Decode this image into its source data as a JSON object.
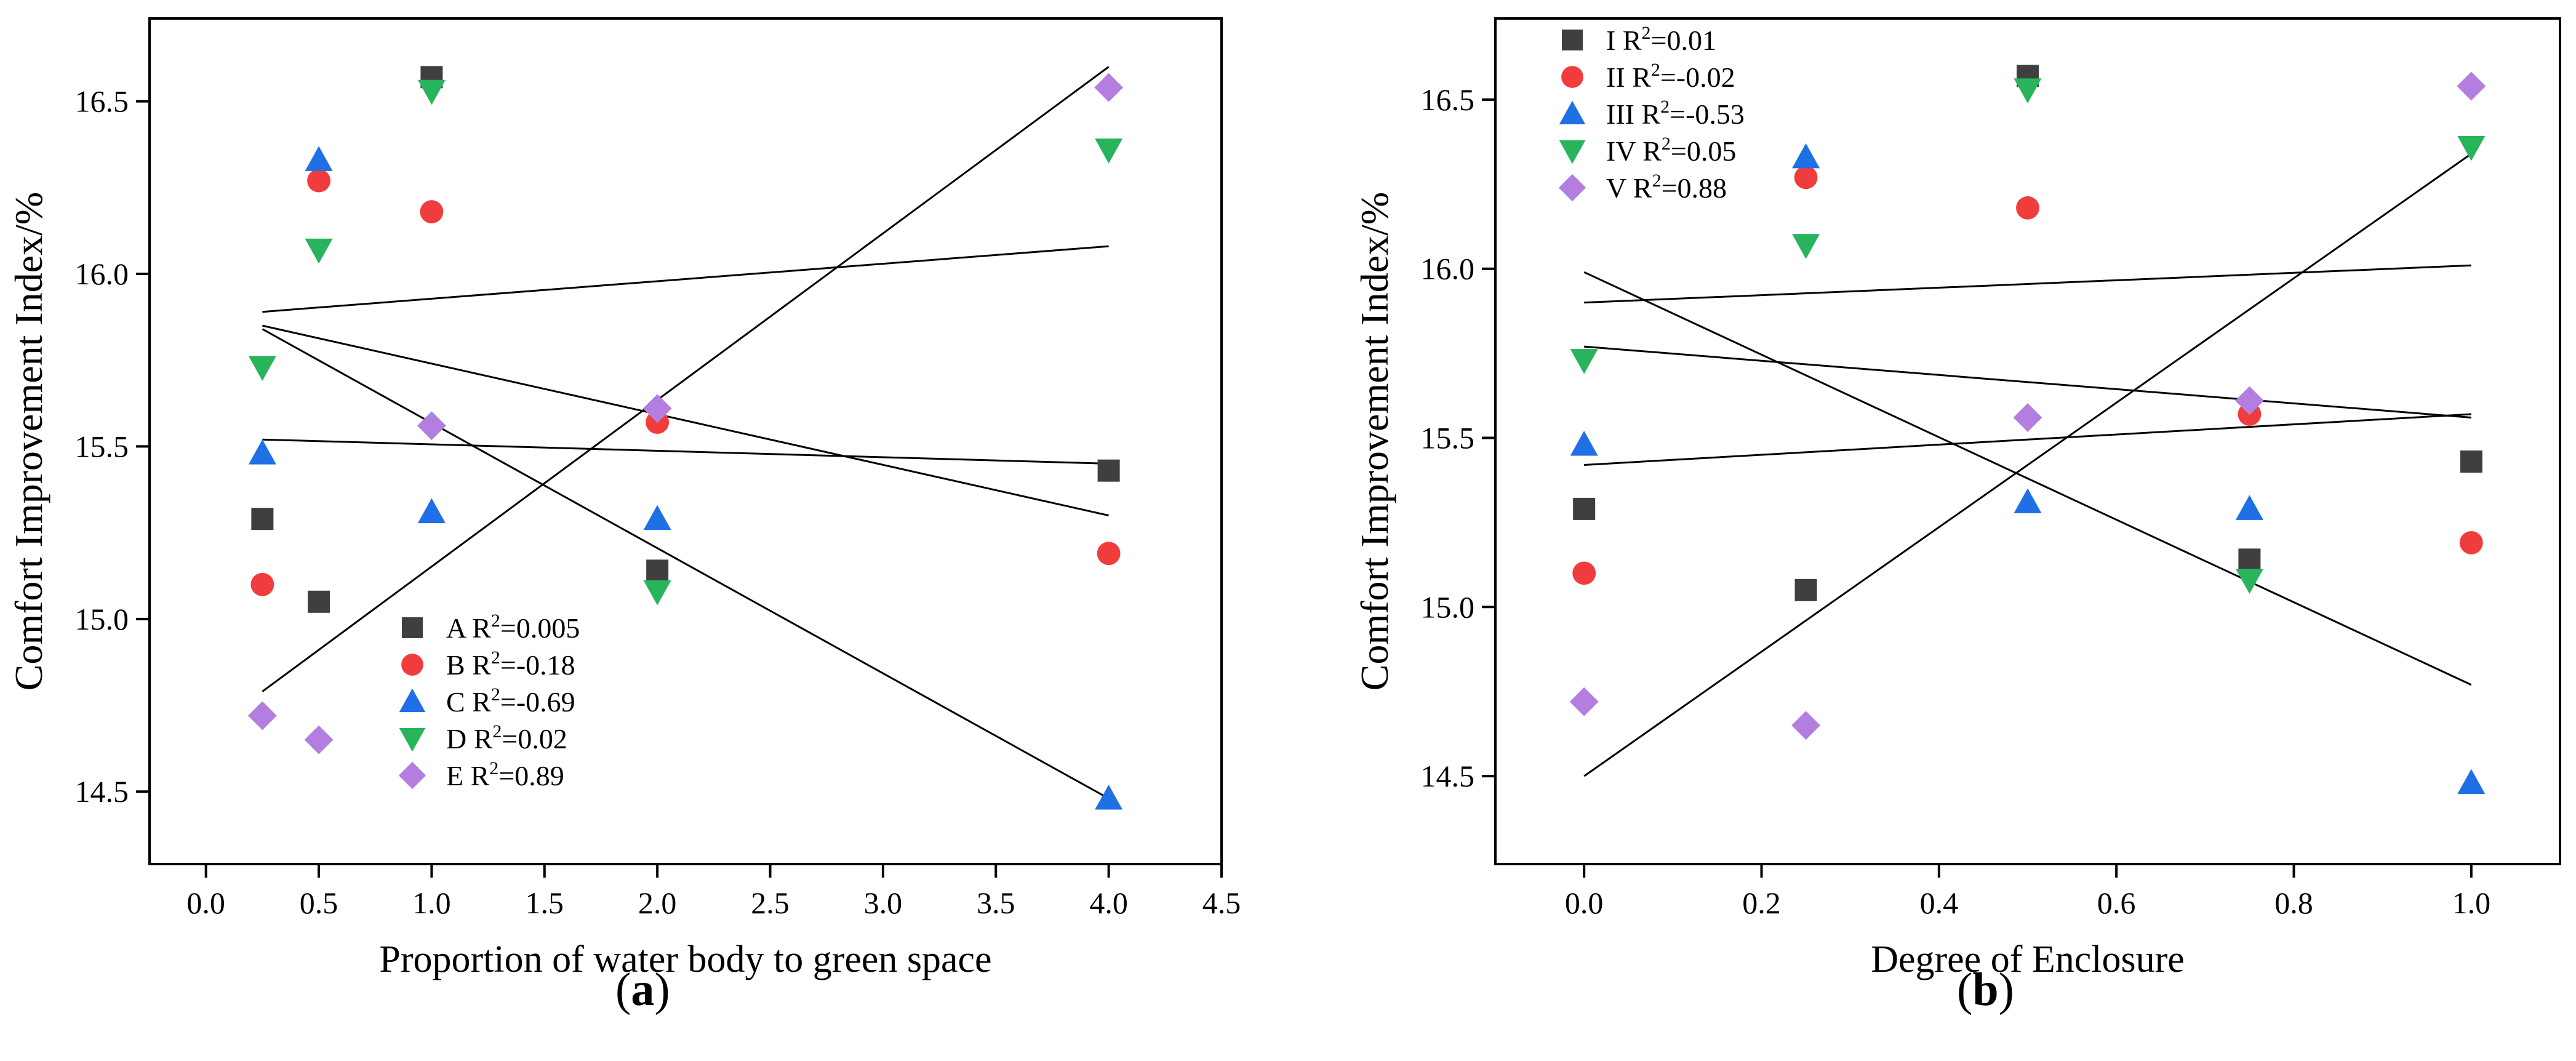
{
  "chart_data": [
    {
      "panel": "a",
      "type": "scatter",
      "xlabel": "Proportion of water body to green space",
      "ylabel": "Comfort Improvement Index/%",
      "xlim": [
        -0.25,
        4.5
      ],
      "ylim": [
        14.29,
        16.74
      ],
      "xticks": [
        0.0,
        0.5,
        1.0,
        1.5,
        2.0,
        2.5,
        3.0,
        3.5,
        4.0,
        4.5
      ],
      "xtick_labels": [
        "0.0",
        "0.5",
        "1.0",
        "1.5",
        "2.0",
        "2.5",
        "3.0",
        "3.5",
        "4.0",
        "4.5"
      ],
      "yticks": [
        14.5,
        15.0,
        15.5,
        16.0,
        16.5
      ],
      "ytick_labels": [
        "14.5",
        "15.0",
        "15.5",
        "16.0",
        "16.5"
      ],
      "legend_position": "bottom-center",
      "series": [
        {
          "name": "A",
          "r2": "0.005",
          "marker": "square",
          "color": "#3f3f3f",
          "x": [
            0.25,
            0.5,
            1.0,
            2.0,
            4.0
          ],
          "y": [
            15.29,
            15.05,
            16.57,
            15.14,
            15.43
          ],
          "fit": {
            "x": [
              0.25,
              4.0
            ],
            "y": [
              15.52,
              15.45
            ]
          }
        },
        {
          "name": "B",
          "r2": "-0.18",
          "marker": "circle",
          "color": "#f03c3c",
          "x": [
            0.25,
            0.5,
            1.0,
            2.0,
            4.0
          ],
          "y": [
            15.1,
            16.27,
            16.18,
            15.57,
            15.19
          ],
          "fit": {
            "x": [
              0.25,
              4.0
            ],
            "y": [
              15.85,
              15.3
            ]
          }
        },
        {
          "name": "C",
          "r2": "-0.69",
          "marker": "triangle-up",
          "color": "#1f6fe5",
          "x": [
            0.25,
            0.5,
            1.0,
            2.0,
            4.0
          ],
          "y": [
            15.48,
            16.33,
            15.31,
            15.29,
            14.48
          ],
          "fit": {
            "x": [
              0.25,
              4.0
            ],
            "y": [
              15.84,
              14.48
            ]
          }
        },
        {
          "name": "D",
          "r2": "0.02",
          "marker": "triangle-down",
          "color": "#27b45a",
          "x": [
            0.25,
            0.5,
            1.0,
            2.0,
            4.0
          ],
          "y": [
            15.73,
            16.07,
            16.53,
            15.08,
            16.36
          ],
          "fit": {
            "x": [
              0.25,
              4.0
            ],
            "y": [
              15.89,
              16.08
            ]
          }
        },
        {
          "name": "E",
          "r2": "0.89",
          "marker": "diamond",
          "color": "#b37ee0",
          "x": [
            0.25,
            0.5,
            1.0,
            2.0,
            4.0
          ],
          "y": [
            14.72,
            14.65,
            15.56,
            15.61,
            16.54
          ],
          "fit": {
            "x": [
              0.25,
              4.0
            ],
            "y": [
              14.79,
              16.6
            ]
          }
        }
      ]
    },
    {
      "panel": "b",
      "type": "scatter",
      "xlabel": "Degree of Enclosure",
      "ylabel": "Comfort Improvement Index/%",
      "xlim": [
        -0.1,
        1.1
      ],
      "ylim": [
        14.24,
        16.74
      ],
      "xticks": [
        0.0,
        0.2,
        0.4,
        0.6,
        0.8,
        1.0
      ],
      "xtick_labels": [
        "0.0",
        "0.2",
        "0.4",
        "0.6",
        "0.8",
        "1.0"
      ],
      "yticks": [
        14.5,
        15.0,
        15.5,
        16.0,
        16.5
      ],
      "ytick_labels": [
        "14.5",
        "15.0",
        "15.5",
        "16.0",
        "16.5"
      ],
      "legend_position": "top-left",
      "series": [
        {
          "name": "I",
          "r2": "0.01",
          "marker": "square",
          "color": "#3f3f3f",
          "x": [
            0.0,
            0.25,
            0.5,
            0.75,
            1.0
          ],
          "y": [
            15.29,
            15.05,
            16.57,
            15.14,
            15.43
          ],
          "fit": {
            "x": [
              0.0,
              1.0
            ],
            "y": [
              15.42,
              15.57
            ]
          }
        },
        {
          "name": "II",
          "r2": "-0.02",
          "marker": "circle",
          "color": "#f03c3c",
          "x": [
            0.0,
            0.25,
            0.5,
            0.75,
            1.0
          ],
          "y": [
            15.1,
            16.27,
            16.18,
            15.57,
            15.19
          ],
          "fit": {
            "x": [
              0.0,
              1.0
            ],
            "y": [
              15.77,
              15.56
            ]
          }
        },
        {
          "name": "III",
          "r2": "-0.53",
          "marker": "triangle-up",
          "color": "#1f6fe5",
          "x": [
            0.0,
            0.25,
            0.5,
            0.75,
            1.0
          ],
          "y": [
            15.48,
            16.33,
            15.31,
            15.29,
            14.48
          ],
          "fit": {
            "x": [
              0.0,
              1.0
            ],
            "y": [
              15.99,
              14.77
            ]
          }
        },
        {
          "name": "IV",
          "r2": "0.05",
          "marker": "triangle-down",
          "color": "#27b45a",
          "x": [
            0.0,
            0.25,
            0.5,
            0.75,
            1.0
          ],
          "y": [
            15.73,
            16.07,
            16.53,
            15.08,
            16.36
          ],
          "fit": {
            "x": [
              0.0,
              1.0
            ],
            "y": [
              15.9,
              16.01
            ]
          }
        },
        {
          "name": "V",
          "r2": "0.88",
          "marker": "diamond",
          "color": "#b37ee0",
          "x": [
            0.0,
            0.25,
            0.5,
            0.75,
            1.0
          ],
          "y": [
            14.72,
            14.65,
            15.56,
            15.61,
            16.54
          ],
          "fit": {
            "x": [
              0.0,
              1.0
            ],
            "y": [
              14.5,
              16.34
            ]
          }
        }
      ]
    }
  ],
  "panel_labels": [
    "a",
    "b"
  ]
}
